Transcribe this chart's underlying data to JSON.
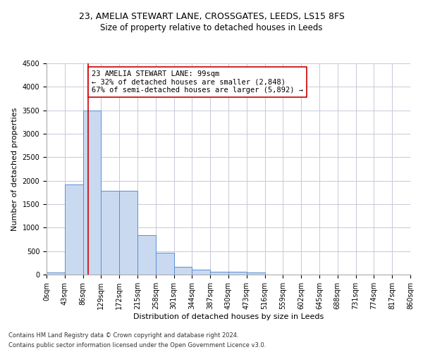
{
  "title1": "23, AMELIA STEWART LANE, CROSSGATES, LEEDS, LS15 8FS",
  "title2": "Size of property relative to detached houses in Leeds",
  "xlabel": "Distribution of detached houses by size in Leeds",
  "ylabel": "Number of detached properties",
  "property_size": 99,
  "property_line_label": "23 AMELIA STEWART LANE: 99sqm",
  "annotation_line1": "← 32% of detached houses are smaller (2,848)",
  "annotation_line2": "67% of semi-detached houses are larger (5,892) →",
  "footer1": "Contains HM Land Registry data © Crown copyright and database right 2024.",
  "footer2": "Contains public sector information licensed under the Open Government Licence v3.0.",
  "bin_edges": [
    0,
    43,
    86,
    129,
    172,
    215,
    258,
    301,
    344,
    387,
    430,
    473,
    516,
    559,
    602,
    645,
    688,
    731,
    774,
    817,
    860
  ],
  "bar_heights": [
    40,
    1920,
    3500,
    1780,
    1780,
    840,
    460,
    160,
    100,
    60,
    55,
    40,
    0,
    0,
    0,
    0,
    0,
    0,
    0,
    0
  ],
  "bar_color": "#c9d9f0",
  "bar_edge_color": "#5b8fd4",
  "vline_x": 99,
  "vline_color": "#cc0000",
  "annotation_box_color": "#cc0000",
  "grid_color": "#c8c8d8",
  "ylim": [
    0,
    4500
  ],
  "xlim": [
    0,
    860
  ],
  "title1_fontsize": 9,
  "title2_fontsize": 8.5,
  "annotation_fontsize": 7.5,
  "xlabel_fontsize": 8,
  "ylabel_fontsize": 8,
  "tick_fontsize": 7,
  "footer_fontsize": 6
}
